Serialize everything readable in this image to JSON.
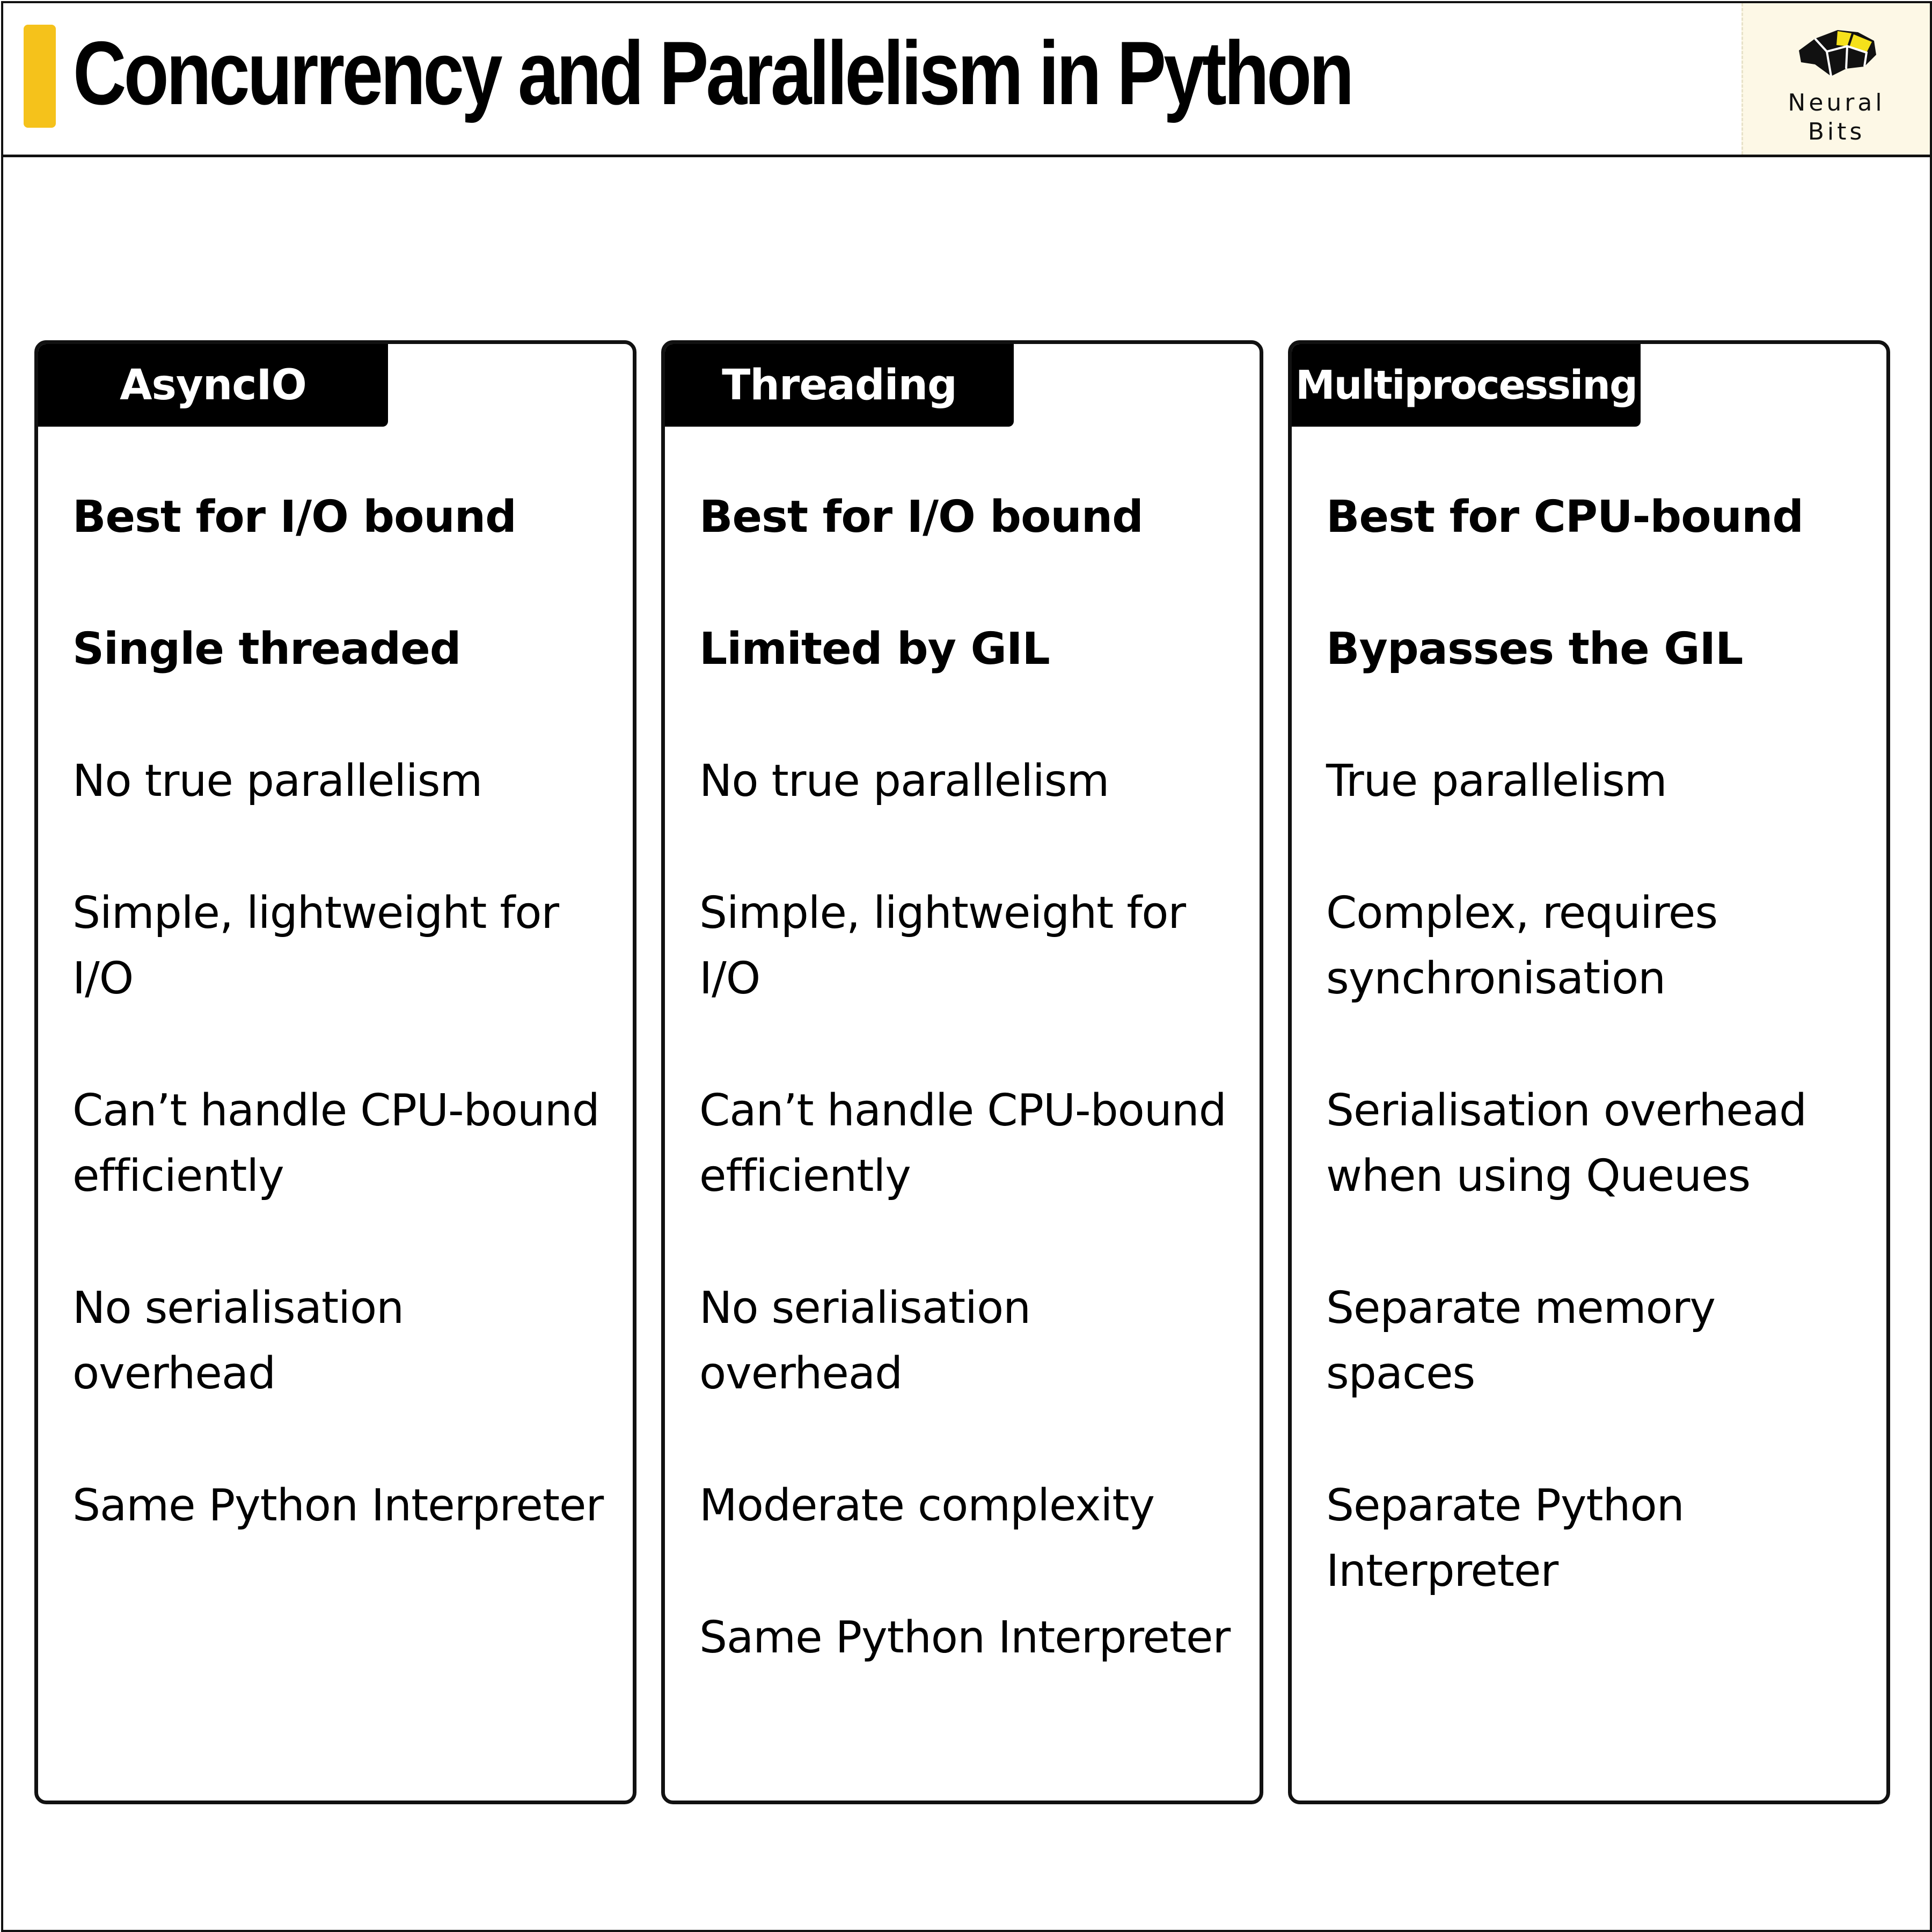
{
  "header": {
    "title": "Concurrency and Parallelism in Python",
    "accent_color": "#f5c21b"
  },
  "logo": {
    "icon": "brain-icon",
    "line1": "Neural",
    "line2": "Bits",
    "background": "#fdf8e6",
    "accent_color": "#f5e11b"
  },
  "columns": [
    {
      "title": "AsyncIO",
      "items": [
        {
          "text": "Best for I/O bound",
          "bold": true
        },
        {
          "text": "Single threaded",
          "bold": true
        },
        {
          "text": "No true parallelism",
          "bold": false
        },
        {
          "text": "Simple, lightweight for I/O",
          "bold": false
        },
        {
          "text": "Can’t handle CPU-bound efficiently",
          "bold": false
        },
        {
          "text": "No serialisation overhead",
          "bold": false
        },
        {
          "text": "Same Python Interpreter",
          "bold": false
        }
      ]
    },
    {
      "title": "Threading",
      "items": [
        {
          "text": "Best for I/O bound",
          "bold": true
        },
        {
          "text": "Limited by GIL",
          "bold": true
        },
        {
          "text": "No true parallelism",
          "bold": false
        },
        {
          "text": "Simple, lightweight for I/O",
          "bold": false
        },
        {
          "text": "Can’t handle CPU-bound efficiently",
          "bold": false
        },
        {
          "text": "No serialisation overhead",
          "bold": false
        },
        {
          "text": "Moderate complexity",
          "bold": false
        },
        {
          "text": "Same Python Interpreter",
          "bold": false
        }
      ]
    },
    {
      "title": "Multiprocessing",
      "items": [
        {
          "text": "Best for CPU-bound",
          "bold": true
        },
        {
          "text": "Bypasses the GIL",
          "bold": true
        },
        {
          "text": "True parallelism",
          "bold": false
        },
        {
          "text": "Complex, requires synchronisation",
          "bold": false
        },
        {
          "text": "Serialisation overhead when using Queues",
          "bold": false
        },
        {
          "text": "Separate memory spaces",
          "bold": false
        },
        {
          "text": "Separate Python Interpreter",
          "bold": false
        }
      ]
    }
  ]
}
